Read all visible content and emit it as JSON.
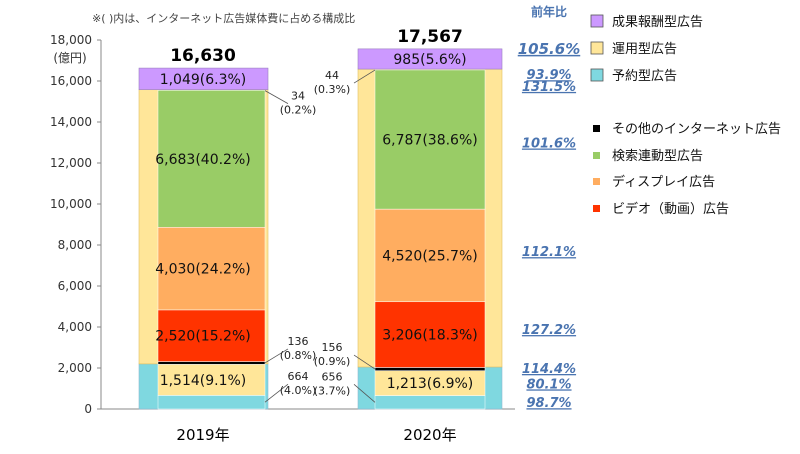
{
  "chart_data": {
    "type": "bar",
    "note": "※(  )内は、インターネット広告媒体費に占める構成比",
    "y_unit_label": "(億円)",
    "ylim": [
      0,
      18000
    ],
    "y_ticks": [
      "0",
      "2,000",
      "4,000",
      "6,000",
      "8,000",
      "10,000",
      "12,000",
      "14,000",
      "16,000",
      "18,000"
    ],
    "y_tick_values": [
      0,
      2000,
      4000,
      6000,
      8000,
      10000,
      12000,
      14000,
      16000,
      18000
    ],
    "categories": [
      "2019年",
      "2020年"
    ],
    "totals": [
      {
        "value": 16630,
        "label": "16,630"
      },
      {
        "value": 17567,
        "label": "17,567"
      }
    ],
    "outer_series": [
      {
        "name": "成果報酬型広告",
        "color": "#cc99ff"
      },
      {
        "name": "運用型広告",
        "color": "#ffe699"
      },
      {
        "name": "予約型広告",
        "color": "#7fd8e0"
      }
    ],
    "outer_values": [
      {
        "reservation": 2200,
        "operation_top": 15581,
        "performance": 1049
      },
      {
        "reservation": 2049,
        "operation_top": 16582,
        "performance": 985
      }
    ],
    "inner_series": [
      {
        "name": "その他のインターネット広告",
        "color": "#000000"
      },
      {
        "name": "検索連動型広告",
        "color": "#99cc66"
      },
      {
        "name": "ディスプレイ広告",
        "color": "#ffad60"
      },
      {
        "name": "ビデオ（動画）広告",
        "color": "#ff3300"
      }
    ],
    "segments": [
      [
        {
          "series": "予約型広告",
          "value": 664,
          "label": "",
          "external_label": [
            "664",
            "(4.0%)"
          ]
        },
        {
          "series": "運用型広告",
          "value": 1514,
          "label": "1,514(9.1%)"
        },
        {
          "series": "その他のインターネット広告",
          "value": 136,
          "label": "",
          "external_label": [
            "136",
            "(0.8%)"
          ]
        },
        {
          "series": "ビデオ（動画）広告",
          "value": 2520,
          "label": "2,520(15.2%)"
        },
        {
          "series": "ディスプレイ広告",
          "value": 4030,
          "label": "4,030(24.2%)"
        },
        {
          "series": "検索連動型広告",
          "value": 6683,
          "label": "6,683(40.2%)"
        },
        {
          "series": "運用型広告",
          "value": 34,
          "label": "",
          "external_label": [
            "34",
            "(0.2%)"
          ]
        },
        {
          "series": "成果報酬型広告",
          "value": 1049,
          "label": "1,049(6.3%)"
        }
      ],
      [
        {
          "series": "予約型広告",
          "value": 656,
          "label": "",
          "external_label": [
            "656",
            "(3.7%)"
          ]
        },
        {
          "series": "運用型広告",
          "value": 1213,
          "label": "1,213(6.9%)"
        },
        {
          "series": "その他のインターネット広告",
          "value": 156,
          "label": "",
          "external_label": [
            "156",
            "(0.9%)"
          ]
        },
        {
          "series": "ビデオ（動画）広告",
          "value": 3206,
          "label": "3,206(18.3%)"
        },
        {
          "series": "ディスプレイ広告",
          "value": 4520,
          "label": "4,520(25.7%)"
        },
        {
          "series": "検索連動型広告",
          "value": 6787,
          "label": "6,787(38.6%)"
        },
        {
          "series": "運用型広告",
          "value": 44,
          "label": "",
          "external_label": [
            "44",
            "(0.3%)"
          ]
        },
        {
          "series": "成果報酬型広告",
          "value": 985,
          "label": "985(5.6%)"
        }
      ]
    ],
    "yoy": {
      "header": "前年比",
      "items": [
        {
          "label": "105.6%",
          "value": 17567,
          "big": true
        },
        {
          "label": "93.9%",
          "value": 16330
        },
        {
          "label": "131.5%",
          "value": 15760
        },
        {
          "label": "101.6%",
          "value": 13000
        },
        {
          "label": "112.1%",
          "value": 7700
        },
        {
          "label": "127.2%",
          "value": 3900
        },
        {
          "label": "114.4%",
          "value": 2000
        },
        {
          "label": "80.1%",
          "value": 1250
        },
        {
          "label": "98.7%",
          "value": 330
        }
      ]
    },
    "legend": [
      {
        "name": "成果報酬型広告",
        "color": "#cc99ff",
        "shape": "box"
      },
      {
        "name": "運用型広告",
        "color": "#ffe699",
        "shape": "box"
      },
      {
        "name": "予約型広告",
        "color": "#7fd8e0",
        "shape": "box"
      },
      {
        "name": "その他のインターネット広告",
        "color": "#000000",
        "shape": "small"
      },
      {
        "name": "検索連動型広告",
        "color": "#99cc66",
        "shape": "small"
      },
      {
        "name": "ディスプレイ広告",
        "color": "#ffad60",
        "shape": "small"
      },
      {
        "name": "ビデオ（動画）広告",
        "color": "#ff3300",
        "shape": "small"
      }
    ],
    "grid": false,
    "legend_position": "right"
  }
}
